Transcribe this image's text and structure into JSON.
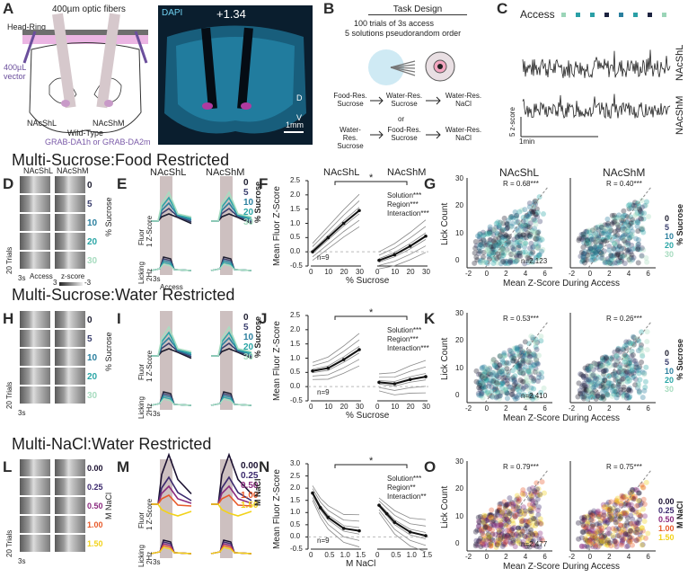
{
  "panel_labels": [
    "A",
    "B",
    "C",
    "D",
    "E",
    "F",
    "G",
    "H",
    "I",
    "J",
    "K",
    "L",
    "M",
    "N",
    "O"
  ],
  "panelA": {
    "fibers": "400µm optic fibers",
    "headring": "Head-Ring",
    "vector": "400µL vector",
    "nacshl": "NAcShL",
    "nacshm": "NAcShM",
    "wildtype": "Wild-Type",
    "grab": "GRAB-DA1h or GRAB-DA2m",
    "dapi": "DAPI",
    "coord": "+1.34",
    "scale": "1mm",
    "d": "D",
    "v": "V"
  },
  "panelB": {
    "title": "Task Design",
    "line1": "100 trials of 3s access",
    "line2": "5 solutions pseudorandom order",
    "r1a": "Food-Res. Sucrose",
    "r1b": "Water-Res. Sucrose",
    "or": "or",
    "r1c": "Water-Res. NaCl",
    "r2a": "Water-Res. Sucrose",
    "r2b": "Food-Res. Sucrose",
    "r2c": "Water-Res. NaCl"
  },
  "panelC": {
    "access": "Access",
    "nacshl": "NAcShL",
    "nacshm": "NAcShM",
    "zscore": "5 z-score",
    "time": "1min",
    "access_colors": [
      "#9bd5b8",
      "#2a9fa6",
      "#2a9fa6",
      "#1c2340",
      "#2a7f9e",
      "#2a9fa6",
      "#1c2340",
      "#9bd5b8"
    ]
  },
  "sections": {
    "s1": "Multi-Sucrose:Food Restricted",
    "s2": "Multi-Sucrose:Water Restricted",
    "s3": "Multi-NaCl:Water Restricted"
  },
  "heatmap": {
    "nacshl": "NAcShL",
    "nacshm": "NAcShM",
    "trials": "20 Trials",
    "time": "3s",
    "access": "Access",
    "zscore": "z-score",
    "zmin": "3",
    "zmax": "-3"
  },
  "sucrose_levels": [
    "0",
    "5",
    "10",
    "20",
    "30"
  ],
  "sucrose_label": "% Sucrose",
  "nacl_levels": [
    "0.00",
    "0.25",
    "0.50",
    "1.00",
    "1.50"
  ],
  "nacl_label": "M NaCl",
  "level_colors_sucrose": [
    "#1c1c2e",
    "#3a3f6e",
    "#2a7f9e",
    "#2aa6a6",
    "#a8dcc0"
  ],
  "level_colors_nacl": [
    "#1a1030",
    "#3c2a6e",
    "#8a2a7e",
    "#e85a2a",
    "#f2d21a"
  ],
  "trace": {
    "nacshl": "NAcShL",
    "nacshm": "NAcShM",
    "fluor": "Fluor",
    "zscore": "1 Z-Score",
    "licking": "Licking",
    "hz": "2Hz",
    "time": "3s",
    "access": "Access"
  },
  "line_plot": {
    "ylabel": "Mean Fluor Z-Score",
    "xlabel_sucrose": "% Sucrose",
    "xlabel_nacl": "M NaCl",
    "nacshl": "NAcShL",
    "nacshm": "NAcShM",
    "n": "n=9",
    "star": "*",
    "stats_F": [
      "Solution***",
      "Region***",
      "Interaction***"
    ],
    "stats_J": [
      "Solution***",
      "Region***",
      "Interaction***"
    ],
    "stats_N": [
      "Solution***",
      "Region**",
      "Interaction**"
    ],
    "yticks": [
      "2.5",
      "2.0",
      "1.5",
      "1.0",
      "0.5",
      "0.0",
      "-0.5"
    ],
    "yticks_N": [
      "3.0",
      "2.5",
      "2.0",
      "1.5",
      "1.0",
      "0.5",
      "0.0",
      "-0.5"
    ],
    "xticks_sucrose": [
      "0",
      "10",
      "20",
      "30"
    ],
    "xticks_nacl": [
      "0",
      "0.5",
      "1.0",
      "1.5"
    ]
  },
  "scatter": {
    "ylabel": "Lick Count",
    "xlabel": "Mean Z-Score During Access",
    "nacshl": "NAcShL",
    "nacshm": "NAcShM",
    "yticks": [
      "30",
      "20",
      "10",
      "0"
    ],
    "xticks": [
      "-2",
      "0",
      "2",
      "4",
      "6"
    ],
    "G": {
      "r_left": "R = 0.68***",
      "r_right": "R = 0.40***",
      "n": "n=2,123"
    },
    "K": {
      "r_left": "R = 0.53***",
      "r_right": "R = 0.26***",
      "n": "n=2,410"
    },
    "O": {
      "r_left": "R = 0.79***",
      "r_right": "R = 0.75***",
      "n": "n=2,477"
    }
  },
  "chart_data": [
    {
      "type": "line",
      "panel": "F",
      "xlabel": "% Sucrose",
      "ylabel": "Mean Fluor Z-Score",
      "x": [
        0,
        10,
        20,
        30
      ],
      "series": [
        {
          "name": "NAcShL",
          "values": [
            0.0,
            0.5,
            1.0,
            1.45
          ]
        },
        {
          "name": "NAcShM",
          "values": [
            -0.3,
            -0.1,
            0.2,
            0.55
          ]
        }
      ],
      "ylim": [
        -0.5,
        2.5
      ]
    },
    {
      "type": "line",
      "panel": "J",
      "xlabel": "% Sucrose",
      "ylabel": "Mean Fluor Z-Score",
      "x": [
        0,
        10,
        20,
        30
      ],
      "series": [
        {
          "name": "NAcShL",
          "values": [
            0.55,
            0.65,
            0.95,
            1.3
          ]
        },
        {
          "name": "NAcShM",
          "values": [
            0.15,
            0.1,
            0.25,
            0.35
          ]
        }
      ],
      "ylim": [
        -0.5,
        2.5
      ]
    },
    {
      "type": "line",
      "panel": "N",
      "xlabel": "M NaCl",
      "ylabel": "Mean Fluor Z-Score",
      "x": [
        0,
        0.25,
        0.5,
        1.0,
        1.5
      ],
      "series": [
        {
          "name": "NAcShL",
          "values": [
            1.8,
            1.2,
            0.8,
            0.35,
            0.25
          ]
        },
        {
          "name": "NAcShM",
          "values": [
            1.3,
            0.95,
            0.6,
            0.2,
            0.05
          ]
        }
      ],
      "ylim": [
        -0.5,
        3.0
      ]
    }
  ]
}
